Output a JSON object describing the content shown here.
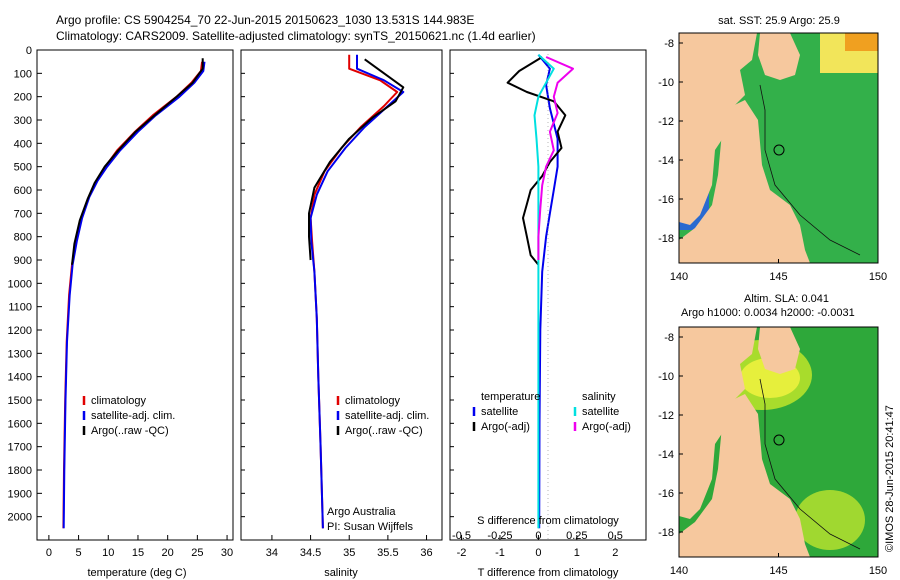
{
  "header": {
    "line1": "Argo profile: CS 5904254_70 22-Jun-2015 20150623_1030 13.531S 144.983E",
    "line2": "Climatology: CARS2009. Satellite-adjusted climatology: synTS_20150621.nc (1.4d earlier)"
  },
  "colors": {
    "clim": "#e00000",
    "sat": "#0000ee",
    "argo": "#000000",
    "sal_sat": "#00e0e0",
    "sal_argo": "#ee00ee"
  },
  "chart_data": [
    {
      "type": "line",
      "id": "temperature",
      "xlabel": "temperature (deg C)",
      "ylabel": "",
      "xlim": [
        -2,
        31
      ],
      "ylim": [
        2100,
        0
      ],
      "xticks": [
        0,
        5,
        10,
        15,
        20,
        25,
        30
      ],
      "yticks": [
        0,
        100,
        200,
        300,
        400,
        500,
        600,
        700,
        800,
        900,
        1000,
        1100,
        1200,
        1300,
        1400,
        1500,
        1600,
        1700,
        1800,
        1900,
        2000
      ],
      "legend": [
        "climatology",
        "satellite-adj. clim.",
        "Argo(..raw -QC)"
      ],
      "series": [
        {
          "name": "climatology",
          "color": "#e00000",
          "points": [
            [
              25.8,
              50
            ],
            [
              25.6,
              90
            ],
            [
              24.0,
              140
            ],
            [
              21.5,
              200
            ],
            [
              17.5,
              280
            ],
            [
              14.5,
              350
            ],
            [
              11.5,
              430
            ],
            [
              9.5,
              500
            ],
            [
              8.0,
              560
            ],
            [
              6.7,
              630
            ],
            [
              5.5,
              720
            ],
            [
              4.6,
              820
            ],
            [
              3.9,
              920
            ],
            [
              3.4,
              1050
            ],
            [
              3.0,
              1250
            ],
            [
              2.75,
              1500
            ],
            [
              2.55,
              1800
            ],
            [
              2.45,
              2050
            ]
          ]
        },
        {
          "name": "satellite-adj. clim.",
          "color": "#0000ee",
          "points": [
            [
              26.2,
              50
            ],
            [
              26.0,
              90
            ],
            [
              24.5,
              140
            ],
            [
              22.0,
              200
            ],
            [
              18.0,
              280
            ],
            [
              15.0,
              350
            ],
            [
              12.0,
              430
            ],
            [
              9.8,
              500
            ],
            [
              8.2,
              560
            ],
            [
              6.8,
              630
            ],
            [
              5.6,
              720
            ],
            [
              4.7,
              820
            ],
            [
              4.0,
              920
            ],
            [
              3.5,
              1050
            ],
            [
              3.05,
              1250
            ],
            [
              2.8,
              1500
            ],
            [
              2.6,
              1800
            ],
            [
              2.5,
              2050
            ]
          ]
        },
        {
          "name": "Argo(..raw -QC)",
          "color": "#000000",
          "points": [
            [
              25.9,
              35
            ],
            [
              25.9,
              80
            ],
            [
              24.2,
              140
            ],
            [
              21.5,
              200
            ],
            [
              17.8,
              280
            ],
            [
              14.6,
              350
            ],
            [
              11.7,
              430
            ],
            [
              9.4,
              500
            ],
            [
              7.7,
              570
            ],
            [
              6.5,
              640
            ],
            [
              5.2,
              730
            ],
            [
              4.3,
              830
            ],
            [
              3.9,
              920
            ]
          ]
        }
      ]
    },
    {
      "type": "line",
      "id": "salinity",
      "xlabel": "salinity",
      "xlim": [
        33.6,
        36.2
      ],
      "ylim": [
        2100,
        0
      ],
      "xticks": [
        34,
        34.5,
        35,
        35.5,
        36
      ],
      "legend": [
        "climatology",
        "satellite-adj. clim.",
        "Argo(..raw -QC)"
      ],
      "annotation": [
        "Argo Australia",
        "PI: Susan Wijffels"
      ],
      "series": [
        {
          "name": "climatology",
          "color": "#e00000",
          "points": [
            [
              35.0,
              20
            ],
            [
              35.0,
              80
            ],
            [
              35.4,
              130
            ],
            [
              35.62,
              180
            ],
            [
              35.45,
              240
            ],
            [
              35.15,
              330
            ],
            [
              34.9,
              420
            ],
            [
              34.68,
              520
            ],
            [
              34.55,
              620
            ],
            [
              34.5,
              720
            ],
            [
              34.52,
              820
            ],
            [
              34.55,
              950
            ],
            [
              34.58,
              1150
            ],
            [
              34.6,
              1400
            ],
            [
              34.63,
              1700
            ],
            [
              34.66,
              2050
            ]
          ]
        },
        {
          "name": "satellite-adj. clim.",
          "color": "#0000ee",
          "points": [
            [
              35.1,
              20
            ],
            [
              35.1,
              80
            ],
            [
              35.45,
              130
            ],
            [
              35.7,
              180
            ],
            [
              35.5,
              240
            ],
            [
              35.2,
              330
            ],
            [
              34.95,
              420
            ],
            [
              34.72,
              520
            ],
            [
              34.58,
              620
            ],
            [
              34.5,
              720
            ],
            [
              34.51,
              820
            ],
            [
              34.55,
              950
            ],
            [
              34.58,
              1150
            ],
            [
              34.6,
              1400
            ],
            [
              34.63,
              1700
            ],
            [
              34.66,
              2050
            ]
          ]
        },
        {
          "name": "Argo(..raw -QC)",
          "color": "#000000",
          "points": [
            [
              35.2,
              40
            ],
            [
              35.45,
              100
            ],
            [
              35.7,
              160
            ],
            [
              35.6,
              220
            ],
            [
              35.3,
              290
            ],
            [
              35.0,
              380
            ],
            [
              34.75,
              480
            ],
            [
              34.55,
              590
            ],
            [
              34.48,
              700
            ],
            [
              34.48,
              800
            ],
            [
              34.5,
              900
            ]
          ]
        }
      ]
    },
    {
      "type": "line",
      "id": "difference",
      "xlabel": "T difference from climatology",
      "xlabel_top": "S difference from climatology",
      "xlim": [
        -2.3,
        2.8
      ],
      "ylim": [
        2100,
        0
      ],
      "xticks": [
        -2,
        -1,
        0,
        1,
        2
      ],
      "top_ticks": [
        {
          "label": "-0.5",
          "t": -2
        },
        {
          "label": "-0.25",
          "t": -1
        },
        {
          "label": "0",
          "t": 0
        },
        {
          "label": "0.25",
          "t": 1
        },
        {
          "label": "0.5",
          "t": 2
        }
      ],
      "legend_left_title": "temperature",
      "legend_right_title": "salinity",
      "legend": [
        "satellite",
        "Argo(-adj)",
        "satellite",
        "Argo(-adj)"
      ],
      "series": [
        {
          "name": "temperature satellite",
          "color": "#0000ee",
          "points": [
            [
              0.0,
              20
            ],
            [
              0.3,
              80
            ],
            [
              0.2,
              150
            ],
            [
              0.3,
              250
            ],
            [
              0.5,
              380
            ],
            [
              0.5,
              500
            ],
            [
              0.4,
              600
            ],
            [
              0.3,
              700
            ],
            [
              0.2,
              800
            ],
            [
              0.1,
              950
            ],
            [
              0.05,
              1200
            ],
            [
              0.03,
              1600
            ],
            [
              0.02,
              2050
            ]
          ]
        },
        {
          "name": "temperature Argo(-adj)",
          "color": "#000000",
          "points": [
            [
              0.1,
              30
            ],
            [
              -0.5,
              90
            ],
            [
              -0.8,
              140
            ],
            [
              -0.3,
              180
            ],
            [
              0.4,
              220
            ],
            [
              0.7,
              280
            ],
            [
              0.5,
              350
            ],
            [
              0.6,
              420
            ],
            [
              0.3,
              480
            ],
            [
              0.1,
              540
            ],
            [
              -0.2,
              600
            ],
            [
              -0.3,
              660
            ],
            [
              -0.4,
              720
            ],
            [
              -0.3,
              800
            ],
            [
              -0.2,
              880
            ],
            [
              0.0,
              920
            ]
          ]
        },
        {
          "name": "salinity satellite",
          "color": "#00e0e0",
          "points": [
            [
              0.0,
              20
            ],
            [
              0.4,
              80
            ],
            [
              0.2,
              140
            ],
            [
              0.0,
              200
            ],
            [
              -0.1,
              280
            ],
            [
              -0.05,
              380
            ],
            [
              0.0,
              500
            ],
            [
              0.0,
              700
            ],
            [
              0.0,
              1000
            ],
            [
              0.0,
              1400
            ],
            [
              0.0,
              2050
            ]
          ]
        },
        {
          "name": "salinity Argo(-adj)",
          "color": "#ee00ee",
          "points": [
            [
              0.2,
              30
            ],
            [
              0.9,
              80
            ],
            [
              0.5,
              140
            ],
            [
              0.4,
              200
            ],
            [
              0.5,
              270
            ],
            [
              0.3,
              350
            ],
            [
              0.4,
              430
            ],
            [
              0.2,
              500
            ],
            [
              0.1,
              580
            ],
            [
              0.05,
              680
            ],
            [
              0.0,
              800
            ],
            [
              0.0,
              900
            ]
          ]
        }
      ]
    }
  ],
  "maps": {
    "top": {
      "title": "sat. SST: 25.9 Argo: 25.9",
      "xticks": [
        "140",
        "145",
        "150"
      ],
      "yticks": [
        "-8",
        "-10",
        "-12",
        "-14",
        "-16",
        "-18"
      ]
    },
    "bottom": {
      "title1": "Altim. SLA: 0.041",
      "title2": "Argo h1000: 0.0034 h2000: -0.0031",
      "xticks": [
        "140",
        "145",
        "150"
      ],
      "yticks": [
        "-8",
        "-10",
        "-12",
        "-14",
        "-16",
        "-18"
      ]
    }
  },
  "footer": {
    "credit": "©IMOS 28-Jun-2015 20:41:47"
  }
}
